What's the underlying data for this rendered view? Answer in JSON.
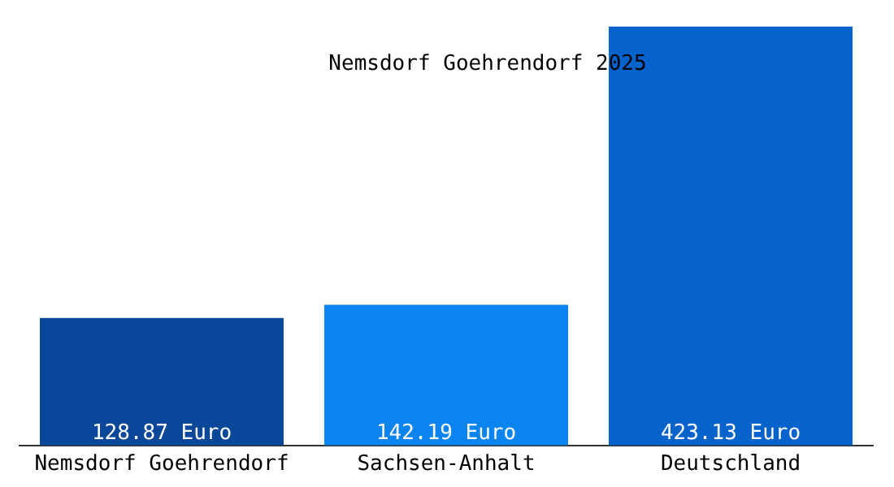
{
  "chart_data": {
    "type": "bar",
    "title": "Nemsdorf Goehrendorf 2025",
    "categories": [
      "Nemsdorf Goehrendorf",
      "Sachsen-Anhalt",
      "Deutschland"
    ],
    "values": [
      128.87,
      142.19,
      423.13
    ],
    "colors": [
      "#08479a",
      "#0a84f0",
      "#0663cc"
    ],
    "value_labels": [
      "128.87 Euro",
      "142.19 Euro",
      "423.13 Euro"
    ]
  }
}
